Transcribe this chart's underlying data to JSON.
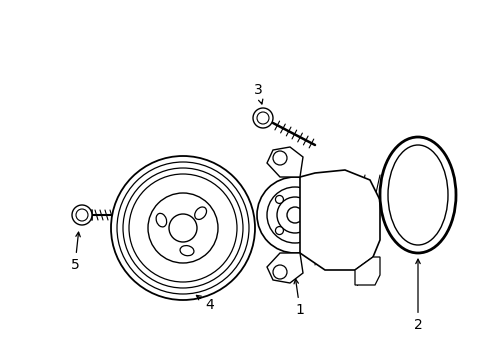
{
  "background_color": "#ffffff",
  "line_color": "#000000",
  "line_width": 1.0,
  "fig_width": 4.89,
  "fig_height": 3.6,
  "dpi": 100,
  "label_fontsize": 10
}
